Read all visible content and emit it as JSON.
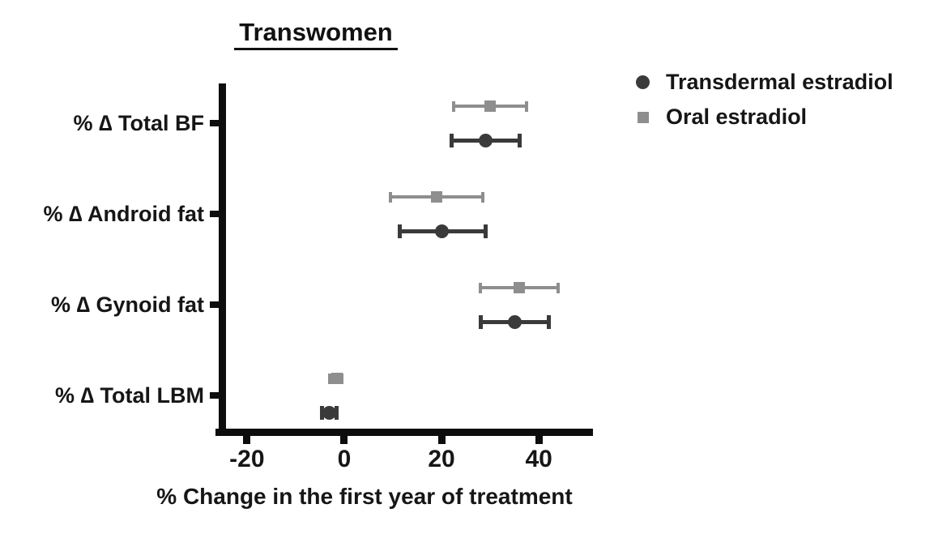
{
  "chart_data": {
    "type": "scatter",
    "subtype": "horizontal-dot-plot-with-error-bars",
    "title": "Transwomen",
    "xlabel": "% Change in the first year of treatment",
    "categories": [
      "% ∆ Total BF",
      "% ∆ Android fat",
      "% ∆ Gynoid fat",
      "% ∆ Total LBM"
    ],
    "series": [
      {
        "name": "Transdermal estradiol",
        "marker": "circle",
        "color": "#3a3a3a",
        "values": [
          29,
          20,
          35,
          -3
        ],
        "ci_low": [
          22,
          11.5,
          28,
          -4.5
        ],
        "ci_high": [
          36,
          29,
          42,
          -1.5
        ]
      },
      {
        "name": "Oral estradiol",
        "marker": "square",
        "color": "#8e8e8e",
        "values": [
          30,
          19,
          36,
          -1.5
        ],
        "ci_low": [
          22.5,
          9.5,
          28,
          -3
        ],
        "ci_high": [
          37.5,
          28.5,
          44,
          -0.5
        ]
      }
    ],
    "xticks": [
      -20,
      0,
      20,
      40
    ],
    "xlim": [
      -25.8,
      50.8
    ],
    "grid": false,
    "legend_position": "top-right",
    "axis_color": "#0d0d0d"
  }
}
